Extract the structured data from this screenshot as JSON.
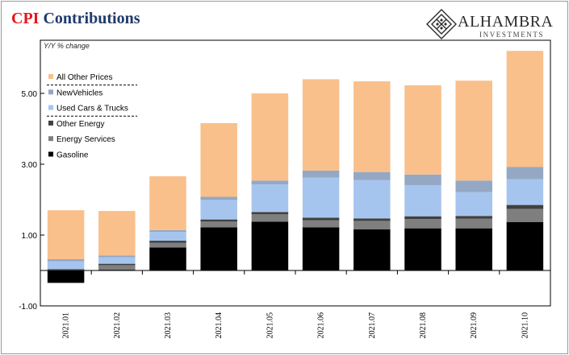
{
  "header": {
    "title_accent": "CPI",
    "title_rest": " Contributions",
    "logo_name": "ALHAMBRA",
    "logo_sub": "INVESTMENTS"
  },
  "chart_data": {
    "type": "bar",
    "stacked": true,
    "unit_label": "Y/Y % change",
    "categories": [
      "2021.01",
      "2021.02",
      "2021.03",
      "2021.04",
      "2021.05",
      "2021.06",
      "2021.07",
      "2021.08",
      "2021.09",
      "2021.10"
    ],
    "ylim": [
      -1.0,
      6.5
    ],
    "yticks": [
      -1.0,
      1.0,
      3.0,
      5.0
    ],
    "ytick_labels": [
      "-1.00",
      "1.00",
      "3.00",
      "5.00"
    ],
    "grid": false,
    "legend_position": "top-left",
    "series": [
      {
        "name": "Gasoline",
        "color": "#000000",
        "values": [
          -0.35,
          0.02,
          0.65,
          1.22,
          1.38,
          1.22,
          1.16,
          1.19,
          1.19,
          1.37
        ]
      },
      {
        "name": "Energy Services",
        "color": "#7f7f7f",
        "values": [
          0.0,
          0.13,
          0.13,
          0.16,
          0.21,
          0.2,
          0.24,
          0.26,
          0.27,
          0.37
        ]
      },
      {
        "name": "Other Energy",
        "color": "#404040",
        "values": [
          0.04,
          0.04,
          0.06,
          0.06,
          0.06,
          0.07,
          0.07,
          0.08,
          0.08,
          0.11
        ]
      },
      {
        "name": "Used Cars & Trucks",
        "color": "#a6c5ee",
        "values": [
          0.22,
          0.18,
          0.25,
          0.55,
          0.78,
          1.13,
          1.08,
          0.88,
          0.67,
          0.73
        ]
      },
      {
        "name": "NewVehicles",
        "color": "#94a8c4",
        "values": [
          0.06,
          0.05,
          0.05,
          0.09,
          0.11,
          0.2,
          0.23,
          0.3,
          0.33,
          0.34
        ]
      },
      {
        "name": "All Other Prices",
        "color": "#f9c08b",
        "values": [
          1.38,
          1.26,
          1.52,
          2.08,
          2.46,
          2.58,
          2.56,
          2.52,
          2.82,
          3.28
        ]
      }
    ],
    "legend_order": [
      "All Other Prices",
      "NewVehicles",
      "Used Cars & Trucks",
      "Other Energy",
      "Energy Services",
      "Gasoline"
    ]
  }
}
